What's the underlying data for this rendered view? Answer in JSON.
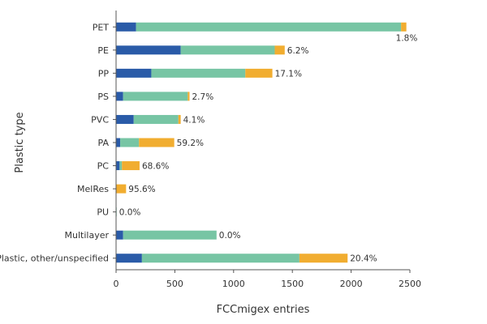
{
  "chart_data": {
    "type": "bar",
    "orientation": "horizontal",
    "stacked": true,
    "xlabel": "FCCmigex entries",
    "ylabel": "Plastic type",
    "xlim": [
      0,
      2500
    ],
    "xticks": [
      0,
      500,
      1000,
      1500,
      2000,
      2500
    ],
    "grid": false,
    "categories": [
      "PET",
      "PE",
      "PP",
      "PS",
      "PVC",
      "PA",
      "PC",
      "MelRes",
      "PU",
      "Multilayer",
      "Plastic, other/unspecified"
    ],
    "series": [
      {
        "color": "#2a5ba8",
        "values": [
          170,
          550,
          300,
          60,
          150,
          35,
          30,
          0,
          0,
          60,
          220
        ]
      },
      {
        "color": "#77c5a4",
        "values": [
          2255,
          800,
          800,
          550,
          380,
          160,
          20,
          0,
          5,
          795,
          1340
        ]
      },
      {
        "color": "#f1ad30",
        "values": [
          45,
          85,
          230,
          15,
          20,
          300,
          150,
          85,
          0,
          0,
          410
        ]
      }
    ],
    "data_labels": [
      "1.8%",
      "6.2%",
      "17.1%",
      "2.7%",
      "4.1%",
      "59.2%",
      "68.6%",
      "95.6%",
      "0.0%",
      "0.0%",
      "20.4%"
    ]
  }
}
